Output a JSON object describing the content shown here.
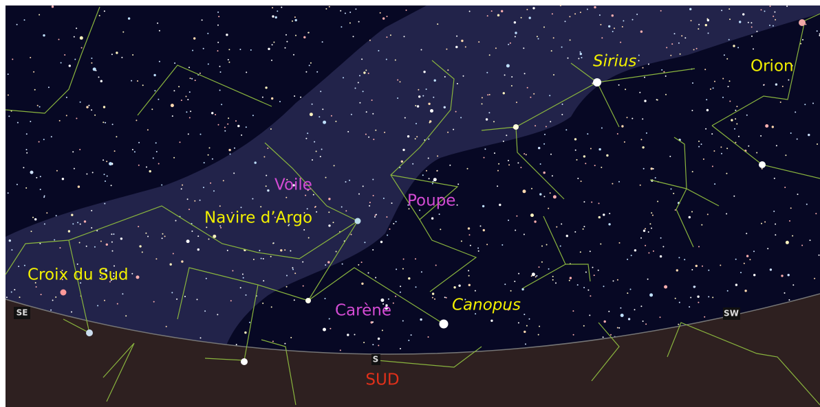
{
  "star_labels": {
    "sirius": "Sirius",
    "canopus": "Canopus"
  },
  "constellation_labels": {
    "orion": "Orion",
    "voile": "Voile",
    "poupe": "Poupe",
    "navire": "Navire d’Argo",
    "croix": "Croix du Sud",
    "carene": "Carène"
  },
  "compass": {
    "se": "SE",
    "sw": "SW",
    "s": "S",
    "south": "SUD"
  }
}
